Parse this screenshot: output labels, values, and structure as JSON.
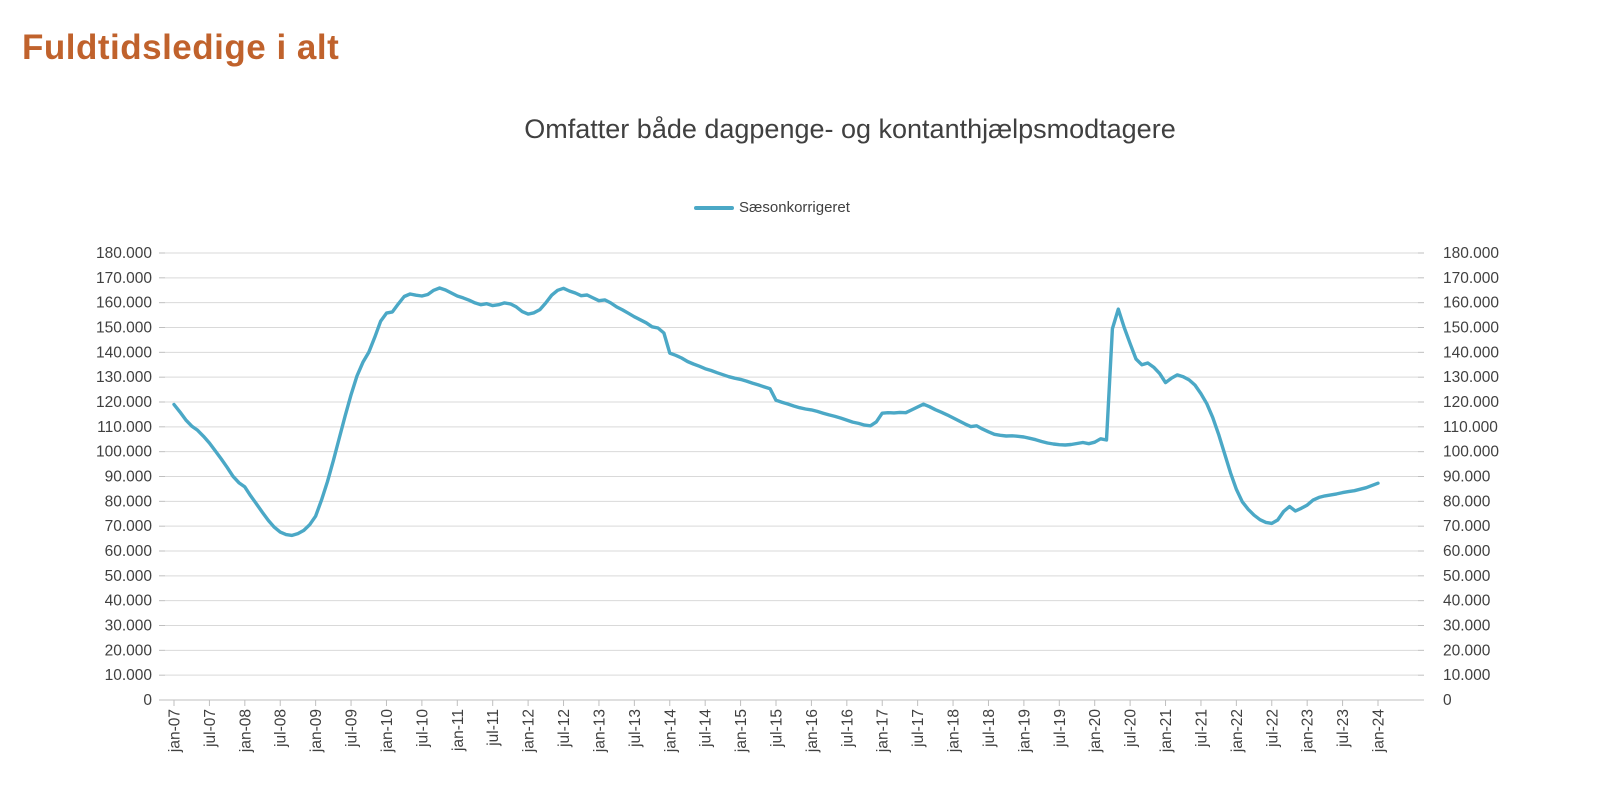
{
  "header": {
    "title": "Fuldtidsledige i alt"
  },
  "chart": {
    "subtitle": "Omfatter både dagpenge- og kontanthjælpsmodtagere",
    "legend": {
      "label": "Sæsonkorrigeret"
    }
  },
  "colors": {
    "title": "#C0622C",
    "series_line": "#4BA8C6",
    "axis_text": "#404040",
    "gridline": "#D9D9D9",
    "axis_line": "#BFBFBF",
    "background": "#FFFFFF"
  },
  "chart_data": {
    "type": "line",
    "title": "Omfatter både dagpenge- og kontanthjælpsmodtagere",
    "xlabel": "",
    "ylabel": "",
    "ylim": [
      0,
      180000
    ],
    "y_tick_step": 10000,
    "grid": "horizontal",
    "legend_position": "top-center",
    "y_axis_sides": "both",
    "y_tick_labels": [
      "180.000",
      "170.000",
      "160.000",
      "150.000",
      "140.000",
      "130.000",
      "120.000",
      "110.000",
      "100.000",
      "90.000",
      "80.000",
      "70.000",
      "60.000",
      "50.000",
      "40.000",
      "30.000",
      "20.000",
      "10.000",
      "0"
    ],
    "x_tick_labels": [
      "jan-07",
      "jul-07",
      "jan-08",
      "jul-08",
      "jan-09",
      "jul-09",
      "jan-10",
      "jul-10",
      "jan-11",
      "jul-11",
      "jan-12",
      "jul-12",
      "jan-13",
      "jul-13",
      "jan-14",
      "jul-14",
      "jan-15",
      "jul-15",
      "jan-16",
      "jul-16",
      "jan-17",
      "jul-17",
      "jan-18",
      "jul-18",
      "jan-19",
      "jul-19",
      "jan-20",
      "jul-20",
      "jan-21",
      "jul-21",
      "jan-22",
      "jul-22",
      "jan-23",
      "jul-23",
      "jan-24"
    ],
    "x_label_every_n_months": 6,
    "series": [
      {
        "name": "Sæsonkorrigeret",
        "frequency": "monthly",
        "start": "jan-07",
        "end": "jan-24",
        "values": [
          119000,
          116000,
          112800,
          110300,
          108600,
          106200,
          103500,
          100300,
          97100,
          93700,
          90100,
          87500,
          85800,
          82200,
          78900,
          75500,
          72300,
          69600,
          67600,
          66600,
          66300,
          67000,
          68300,
          70600,
          74000,
          80500,
          88000,
          96500,
          105500,
          114500,
          123000,
          130500,
          136000,
          140000,
          146000,
          152500,
          155800,
          156300,
          159500,
          162500,
          163500,
          163000,
          162700,
          163300,
          165000,
          165900,
          165100,
          163900,
          162700,
          161900,
          161000,
          159900,
          159200,
          159600,
          158800,
          159200,
          159900,
          159500,
          158300,
          156400,
          155400,
          155900,
          157200,
          159900,
          163000,
          165000,
          165800,
          164700,
          163900,
          162800,
          163100,
          161900,
          160800,
          161100,
          159900,
          158300,
          157100,
          155700,
          154300,
          153100,
          151900,
          150300,
          149800,
          147800,
          139700,
          138800,
          137700,
          136300,
          135300,
          134400,
          133400,
          132700,
          131800,
          131000,
          130200,
          129600,
          129100,
          128400,
          127600,
          126900,
          126100,
          125300,
          120700,
          119900,
          119200,
          118400,
          117700,
          117200,
          116800,
          116200,
          115500,
          114800,
          114200,
          113500,
          112700,
          111900,
          111400,
          110700,
          110400,
          112000,
          115500,
          115700,
          115600,
          115800,
          115700,
          116800,
          118000,
          119100,
          118100,
          116900,
          115900,
          114800,
          113600,
          112400,
          111200,
          110100,
          110400,
          109100,
          108000,
          107000,
          106600,
          106300,
          106400,
          106200,
          105900,
          105400,
          104800,
          104100,
          103500,
          103100,
          102800,
          102700,
          102900,
          103300,
          103700,
          103200,
          103800,
          105200,
          104700,
          149500,
          157400,
          150000,
          143500,
          137300,
          135000,
          135700,
          134000,
          131500,
          127800,
          129600,
          130900,
          130200,
          128900,
          126800,
          123400,
          119300,
          113800,
          107000,
          99300,
          91500,
          84800,
          79800,
          76800,
          74400,
          72600,
          71500,
          71100,
          72500,
          75900,
          77900,
          76100,
          77200,
          78500,
          80500,
          81600,
          82200,
          82600,
          83000,
          83500,
          83900,
          84300,
          84900,
          85500,
          86400,
          87300
        ]
      }
    ]
  }
}
